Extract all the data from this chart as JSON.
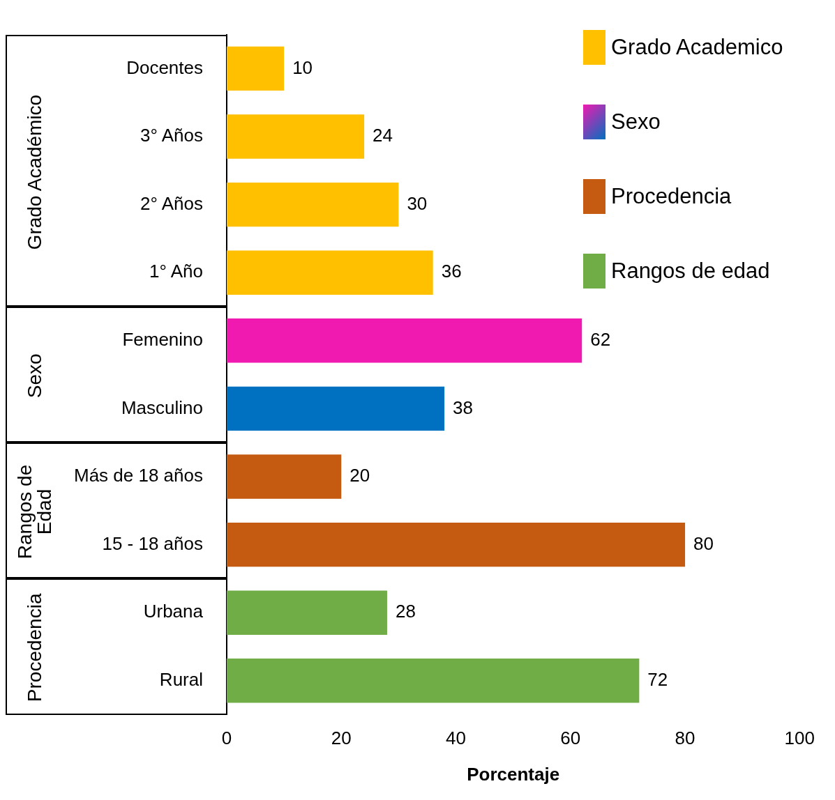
{
  "chart_data": {
    "type": "bar",
    "orientation": "horizontal",
    "xlabel": "Porcentaje",
    "categories": [
      "Docentes",
      "3° Años",
      "2° Años",
      "1° Año",
      "Femenino",
      "Masculino",
      "Más de 18 años",
      "15 - 18 años",
      "Urbana",
      "Rural"
    ],
    "series": [
      {
        "name": "Grado Academico",
        "color": "#ffc000",
        "values": [
          10,
          24,
          30,
          36,
          null,
          null,
          null,
          null,
          null,
          null
        ]
      },
      {
        "name": "Sexo",
        "colors": [
          null,
          null,
          null,
          null,
          "#f01ab0",
          "#0070c0",
          null,
          null,
          null,
          null
        ],
        "values": [
          null,
          null,
          null,
          null,
          62,
          38,
          null,
          null,
          null,
          null
        ]
      },
      {
        "name": "Procedencia",
        "color": "#c55a11",
        "values": [
          null,
          null,
          null,
          null,
          null,
          null,
          20,
          80,
          null,
          null
        ]
      },
      {
        "name": "Rangos de edad",
        "color": "#70ad47",
        "values": [
          null,
          null,
          null,
          null,
          null,
          null,
          null,
          null,
          28,
          72
        ]
      }
    ],
    "annotations": [
      "Grado Académico",
      "Sexo",
      "Rangos de Edad",
      "Procedencia"
    ],
    "xlim": [
      0,
      100
    ],
    "xticks": [
      0,
      20,
      40,
      60,
      80,
      100
    ],
    "data_labels": true,
    "legend": "top right",
    "grid": false
  }
}
